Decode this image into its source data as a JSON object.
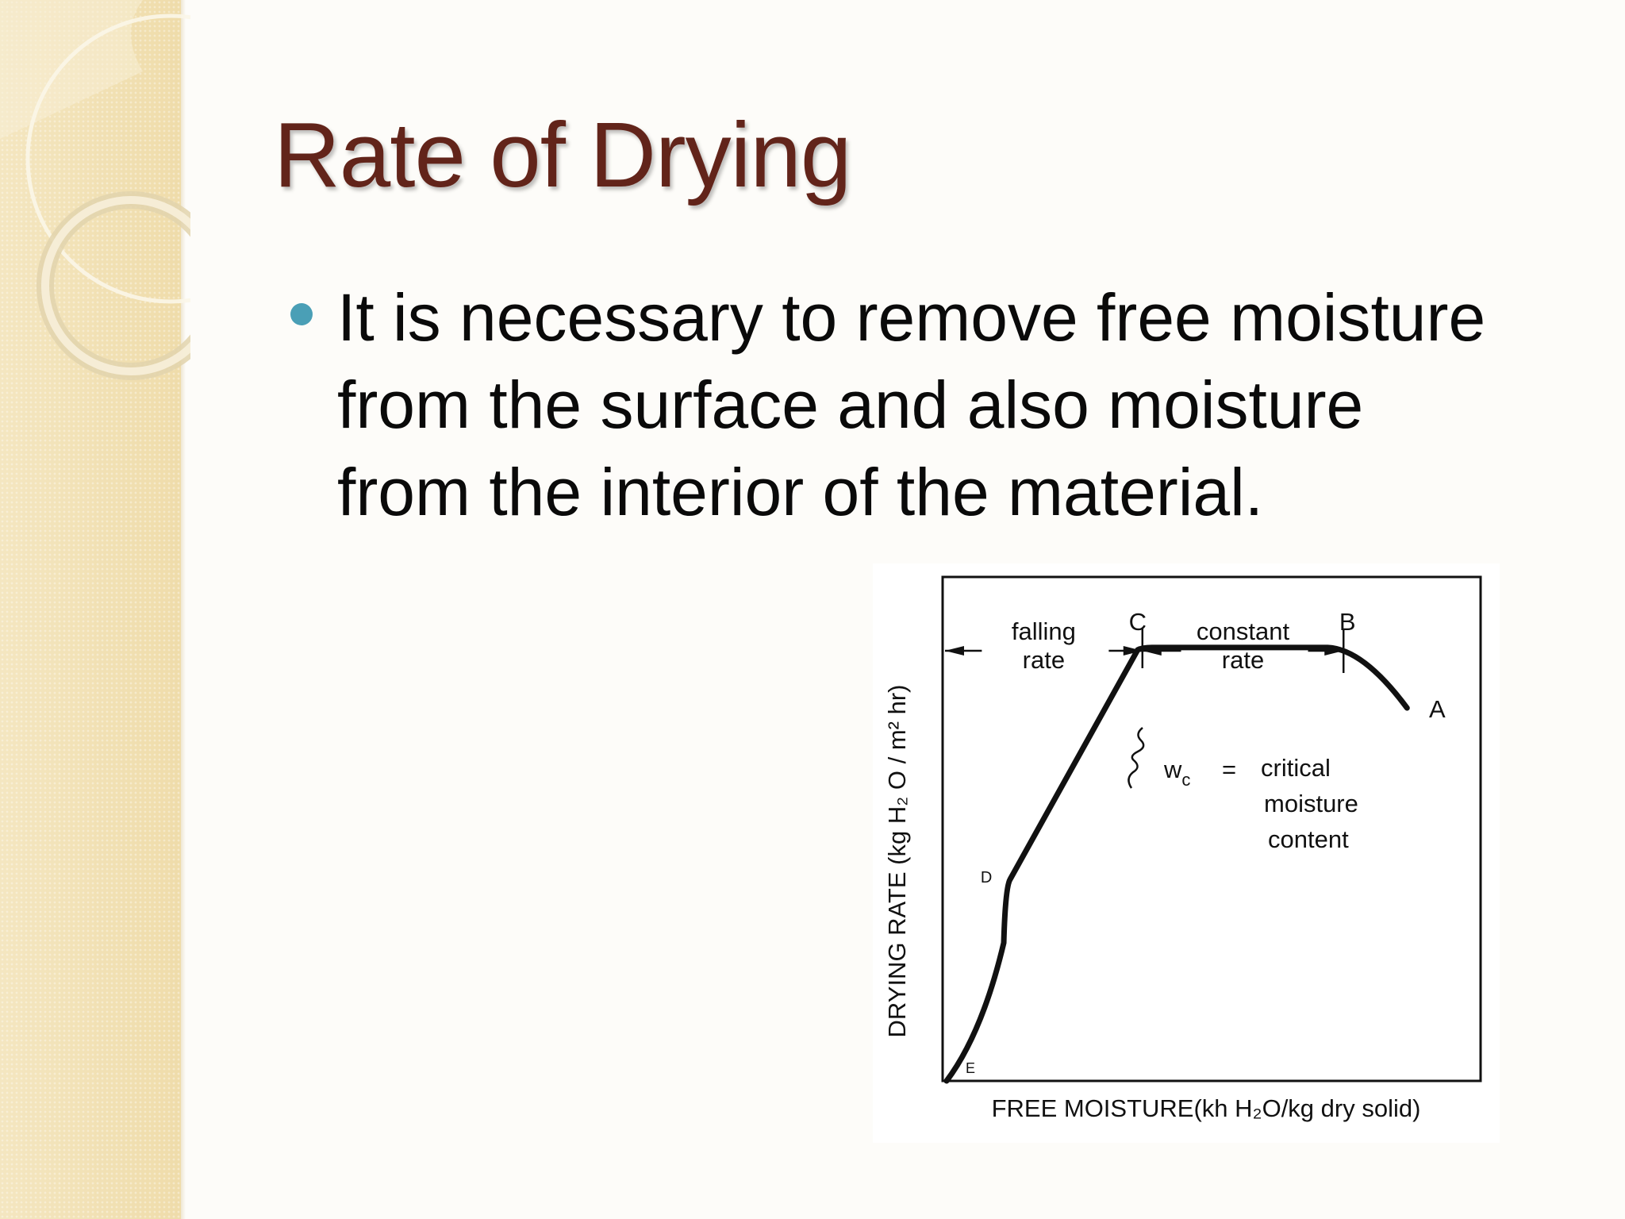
{
  "slide": {
    "title": "Rate of Drying",
    "bullets": [
      "It is necessary to remove free moisture from the surface and also moisture from the interior of the material."
    ],
    "colors": {
      "title": "#62241a",
      "bullet": "#4a9fb6",
      "sidebar": "#f2e2b6",
      "text": "#0a0a0a"
    }
  },
  "chart_data": {
    "type": "line",
    "title": "",
    "xlabel": "FREE MOISTURE(kh H₂O/kg dry solid)",
    "ylabel": "DRYING RATE (kg H₂ O / m² hr)",
    "points": [
      {
        "label": "E",
        "x": 0,
        "y": 0
      },
      {
        "label": "D",
        "x": 0.12,
        "y": 0.4
      },
      {
        "label": "C",
        "x": 0.37,
        "y": 0.86
      },
      {
        "label": "B",
        "x": 0.75,
        "y": 0.86
      },
      {
        "label": "A",
        "x": 0.87,
        "y": 0.74
      }
    ],
    "regions": [
      {
        "label_line1": "falling",
        "label_line2": "rate",
        "from": "E",
        "to": "C"
      },
      {
        "label_line1": "constant",
        "label_line2": "rate",
        "from": "C",
        "to": "B"
      }
    ],
    "annotation": {
      "symbol": "w",
      "subscript": "c",
      "equals": "=",
      "text_lines": [
        "critical",
        "moisture",
        "content"
      ]
    },
    "xlim": [
      0,
      1
    ],
    "ylim": [
      0,
      1
    ],
    "grid": false,
    "axis_ticks": false
  }
}
